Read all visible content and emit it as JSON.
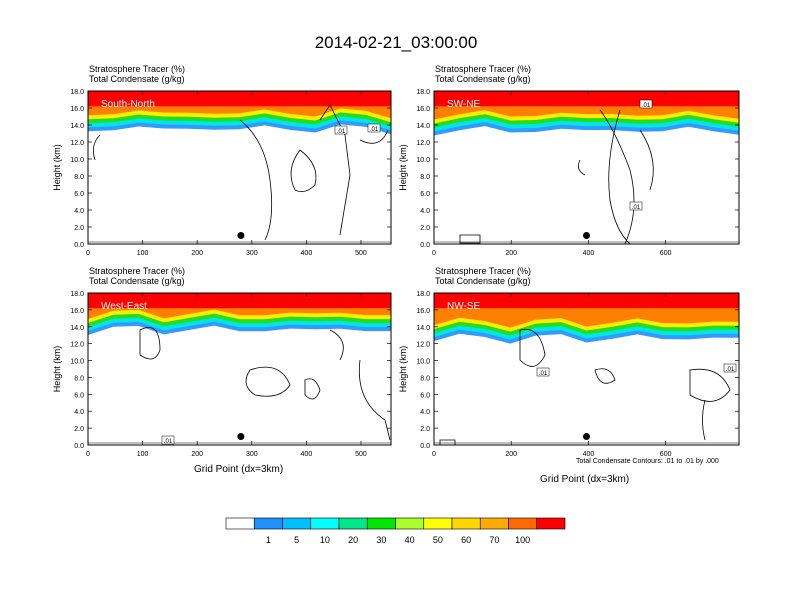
{
  "title": "2014-02-21_03:00:00",
  "colors": {
    "tracer_red": "#ff0000",
    "band_orange": "#ff7f00",
    "band_yellow": "#ffee00",
    "band_green": "#22dd22",
    "band_cyan": "#00e6e6",
    "band_blue": "#3399ff"
  },
  "chart_data": [
    {
      "type": "heatmap",
      "panel": "South-North",
      "title_line1": "Stratosphere Tracer   (%)",
      "title_line2": "Total Condensate   (g/kg)",
      "ylabel": "Height (km)",
      "xlabel": "",
      "xlim": [
        0,
        555
      ],
      "ylim": [
        0,
        18
      ],
      "xticks": [
        0,
        100,
        200,
        300,
        400,
        500
      ],
      "yticks": [
        "0.0",
        "2.0",
        "4.0",
        "6.0",
        "8.0",
        "10.0",
        "12.0",
        "14.0",
        "16.0",
        "18.0"
      ],
      "marker_x": 280,
      "contour_labels": [
        ".01",
        ".01"
      ],
      "tracer_base_km": 14.2
    },
    {
      "type": "heatmap",
      "panel": "SW-NE",
      "title_line1": "Stratosphere Tracer   (%)",
      "title_line2": "Total Condensate   (g/kg)",
      "ylabel": "Height (km)",
      "xlabel": "",
      "xlim": [
        0,
        790
      ],
      "ylim": [
        0,
        18
      ],
      "xticks": [
        0,
        200,
        400,
        600
      ],
      "yticks": [
        "0.0",
        "2.0",
        "4.0",
        "6.0",
        "8.0",
        "10.0",
        "12.0",
        "14.0",
        "16.0",
        "18.0"
      ],
      "marker_x": 395,
      "contour_labels": [
        ".01",
        ".01"
      ],
      "tracer_base_km": 14.0
    },
    {
      "type": "heatmap",
      "panel": "West-East",
      "title_line1": "Stratosphere Tracer   (%)",
      "title_line2": "Total Condensate   (g/kg)",
      "ylabel": "Height (km)",
      "xlabel": "Grid Point (dx=3km)",
      "xlim": [
        0,
        555
      ],
      "ylim": [
        0,
        18
      ],
      "xticks": [
        0,
        100,
        200,
        300,
        400,
        500
      ],
      "yticks": [
        "0.0",
        "2.0",
        "4.0",
        "6.0",
        "8.0",
        "10.0",
        "12.0",
        "14.0",
        "16.0",
        "18.0"
      ],
      "marker_x": 280,
      "contour_labels": [
        ".01"
      ],
      "tracer_base_km": 14.3
    },
    {
      "type": "heatmap",
      "panel": "NW-SE",
      "title_line1": "Stratosphere Tracer   (%)",
      "title_line2": "Total Condensate   (g/kg)",
      "ylabel": "Height (km)",
      "xlabel": "Grid Point (dx=3km)",
      "xlim": [
        0,
        790
      ],
      "ylim": [
        0,
        18
      ],
      "xticks": [
        0,
        200,
        400,
        600
      ],
      "yticks": [
        "0.0",
        "2.0",
        "4.0",
        "6.0",
        "8.0",
        "10.0",
        "12.0",
        "14.0",
        "16.0",
        "18.0"
      ],
      "marker_x": 395,
      "contour_labels": [
        ".01",
        ".01"
      ],
      "tracer_base_km": 13.3,
      "contour_note": "Total Condensate Contours: .01 to .01 by .000"
    }
  ],
  "colorbar": {
    "labels": [
      "1",
      "5",
      "10",
      "20",
      "30",
      "40",
      "50",
      "60",
      "70",
      "100"
    ],
    "colors": [
      "#ffffff",
      "#1e90ff",
      "#00bfff",
      "#00ffff",
      "#00e68a",
      "#00e600",
      "#aaff2a",
      "#ffff00",
      "#ffd700",
      "#ffaa00",
      "#ff6a00",
      "#ff0000"
    ]
  }
}
